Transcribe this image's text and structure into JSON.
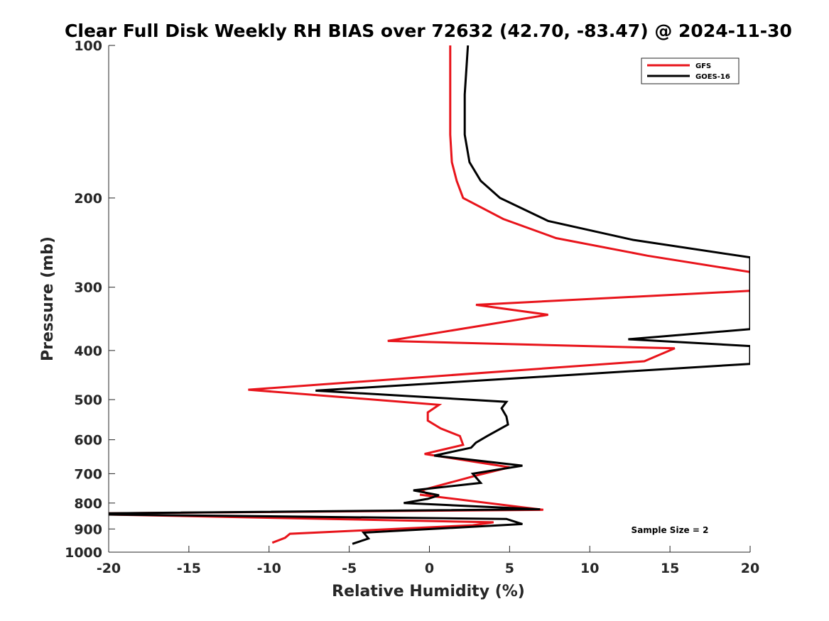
{
  "chart_data": {
    "type": "line",
    "title": "Clear Full Disk Weekly RH BIAS over 72632 (42.70, -83.47) @ 2024-11-30",
    "xlabel": "Relative Humidity (%)",
    "ylabel": "Pressure (mb)",
    "xlim": [
      -20,
      20
    ],
    "ylim": [
      100,
      1000
    ],
    "y_scale": "log",
    "y_reversed": true,
    "x_ticks": [
      "-20",
      "-15",
      "-10",
      "-5",
      "0",
      "5",
      "10",
      "15",
      "20"
    ],
    "y_ticks": [
      "100",
      "200",
      "300",
      "400",
      "500",
      "600",
      "700",
      "800",
      "900",
      "1000"
    ],
    "grid": false,
    "legend_position": "top-right",
    "annotation": "Sample Size = 2",
    "series": [
      {
        "name": "GFS",
        "color": "#e8141b",
        "points": [
          [
            1.3,
            100
          ],
          [
            1.3,
            125
          ],
          [
            1.3,
            150
          ],
          [
            1.4,
            170
          ],
          [
            1.7,
            185
          ],
          [
            2.1,
            200
          ],
          [
            4.6,
            220
          ],
          [
            7.9,
            240
          ],
          [
            13.6,
            260
          ],
          [
            20,
            280
          ],
          [
            20,
            305
          ],
          [
            2.9,
            325
          ],
          [
            7.4,
            340
          ],
          [
            -2.6,
            383
          ],
          [
            15.3,
            396
          ],
          [
            13.4,
            420
          ],
          [
            -11.3,
            478
          ],
          [
            0.6,
            512
          ],
          [
            -0.1,
            530
          ],
          [
            -0.1,
            550
          ],
          [
            0.7,
            570
          ],
          [
            1.9,
            590
          ],
          [
            2.1,
            614
          ],
          [
            -0.3,
            640
          ],
          [
            5.0,
            680
          ],
          [
            3.0,
            705
          ],
          [
            -0.5,
            755
          ],
          [
            0.1,
            775
          ],
          [
            -0.6,
            770
          ],
          [
            7.1,
            825
          ],
          [
            -20,
            838
          ],
          [
            -20,
            843
          ],
          [
            4.0,
            873
          ],
          [
            2.7,
            885
          ],
          [
            -8.7,
            920
          ],
          [
            -9.0,
            937
          ],
          [
            -9.8,
            958
          ]
        ]
      },
      {
        "name": "GOES-16",
        "color": "#000000",
        "points": [
          [
            2.4,
            100
          ],
          [
            2.2,
            125
          ],
          [
            2.2,
            150
          ],
          [
            2.5,
            170
          ],
          [
            3.2,
            185
          ],
          [
            4.4,
            200
          ],
          [
            7.4,
            222
          ],
          [
            12.7,
            242
          ],
          [
            20,
            262
          ],
          [
            20,
            363
          ],
          [
            12.4,
            380
          ],
          [
            20,
            392
          ],
          [
            20,
            425
          ],
          [
            -7.1,
            480
          ],
          [
            4.8,
            505
          ],
          [
            4.5,
            520
          ],
          [
            4.8,
            540
          ],
          [
            4.9,
            560
          ],
          [
            3.6,
            590
          ],
          [
            2.9,
            608
          ],
          [
            2.6,
            622
          ],
          [
            0.3,
            645
          ],
          [
            5.8,
            675
          ],
          [
            2.7,
            700
          ],
          [
            3.2,
            730
          ],
          [
            -1.0,
            755
          ],
          [
            0.6,
            772
          ],
          [
            -0.1,
            785
          ],
          [
            -1.6,
            800
          ],
          [
            6.9,
            823
          ],
          [
            -20,
            838
          ],
          [
            -20,
            843
          ],
          [
            4.8,
            860
          ],
          [
            5.8,
            880
          ],
          [
            -4.1,
            915
          ],
          [
            -3.8,
            940
          ],
          [
            -4.8,
            963
          ]
        ]
      }
    ]
  }
}
